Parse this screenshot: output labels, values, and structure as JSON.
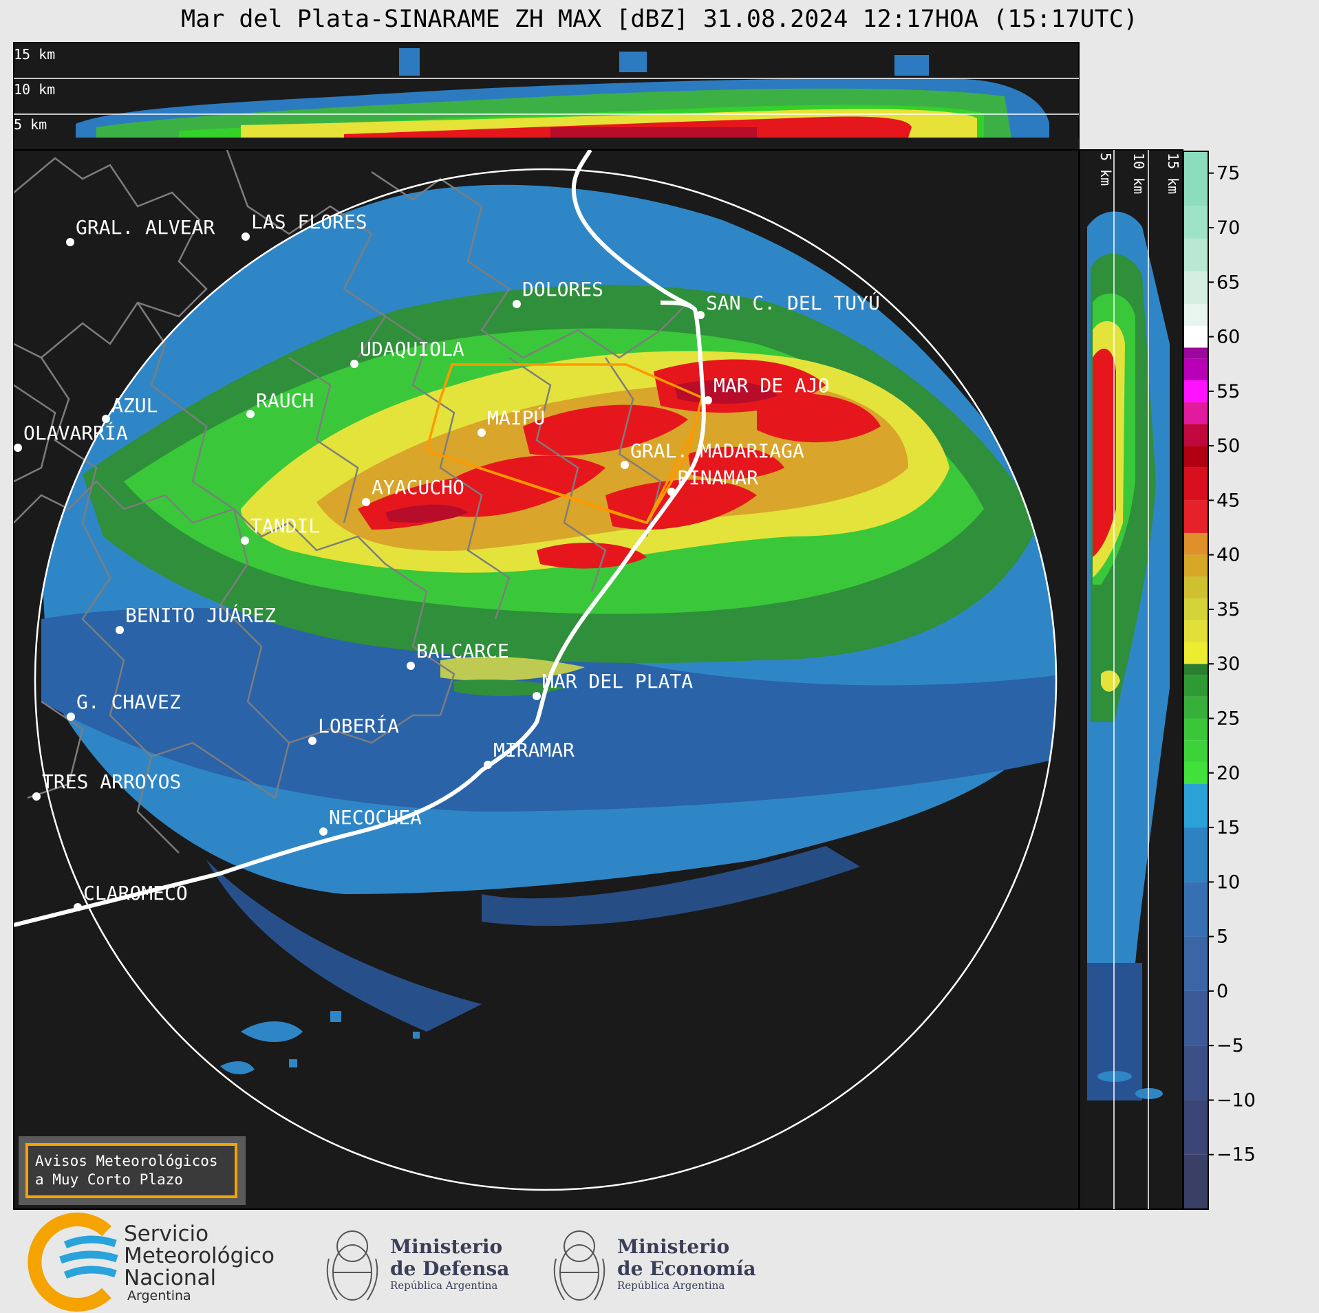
{
  "title": "Mar del Plata-SINARAME ZH MAX [dBZ] 31.08.2024 12:17HOA (15:17UTC)",
  "top_panel_labels": [
    "15 km",
    "10 km",
    "5 km"
  ],
  "side_panel_labels": [
    "5 km",
    "10 km",
    "15 km"
  ],
  "cities": [
    {
      "name": "GRAL. ALVEAR"
    },
    {
      "name": "LAS FLORES"
    },
    {
      "name": "DOLORES"
    },
    {
      "name": "SAN C. DEL TUYÚ"
    },
    {
      "name": "UDAQUIOLA"
    },
    {
      "name": "MAR DE AJO"
    },
    {
      "name": "AZUL"
    },
    {
      "name": "RAUCH"
    },
    {
      "name": "OLAVARRÍA"
    },
    {
      "name": "MAIPÚ"
    },
    {
      "name": "GRAL. MADARIAGA"
    },
    {
      "name": "PINAMAR"
    },
    {
      "name": "AYACUCHO"
    },
    {
      "name": "TANDIL"
    },
    {
      "name": "BENITO JUÁREZ"
    },
    {
      "name": "BALCARCE"
    },
    {
      "name": "MAR DEL PLATA"
    },
    {
      "name": "G. CHAVEZ"
    },
    {
      "name": "LOBERÍA"
    },
    {
      "name": "MIRAMAR"
    },
    {
      "name": "TRES ARROYOS"
    },
    {
      "name": "NECOCHEA"
    },
    {
      "name": "CLAROMECO"
    }
  ],
  "colorbar": {
    "ticks": [
      "75",
      "70",
      "65",
      "60",
      "55",
      "50",
      "45",
      "40",
      "35",
      "30",
      "25",
      "20",
      "15",
      "10",
      "5",
      "0",
      "−5",
      "−10",
      "−15"
    ]
  },
  "warning_box": {
    "line1": "Avisos Meteorológicos",
    "line2": "a Muy Corto Plazo"
  },
  "logos": {
    "smn_line1": "Servicio",
    "smn_line2": "Meteorológico",
    "smn_line3": "Nacional",
    "smn_line4": "Argentina",
    "defensa_line1": "Ministerio",
    "defensa_line2": "de Defensa",
    "defensa_line3": "República Argentina",
    "economia_line1": "Ministerio",
    "economia_line2": "de Economía",
    "economia_line3": "República Argentina"
  },
  "colors": {
    "background": "#1a1a1a",
    "warning_polygon": "#ff9900",
    "smn_blue": "#29a3dc",
    "smn_orange": "#f5a300"
  }
}
